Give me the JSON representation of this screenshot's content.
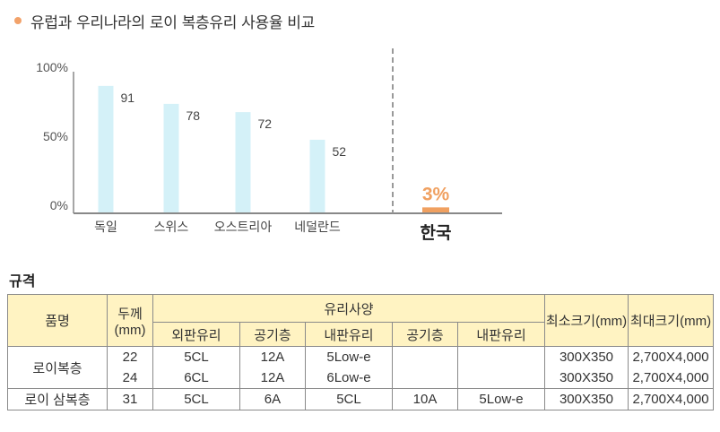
{
  "header": {
    "title": "유럽과 우리나라의 로이 복층유리 사용율 비교"
  },
  "chart_data": {
    "type": "bar",
    "categories": [
      "독일",
      "스위스",
      "오스트리아",
      "네덜란드"
    ],
    "values": [
      91,
      78,
      72,
      52
    ],
    "value_labels": [
      "91",
      "78",
      "72",
      "52"
    ],
    "highlight": {
      "category": "한국",
      "value": 3,
      "label": "3%"
    },
    "ylim": [
      0,
      100
    ],
    "yticks": [
      "100%",
      "50%",
      "0%"
    ],
    "colors": {
      "bars": "#d4f1f8",
      "highlight": "#f0a060",
      "axis": "#888888"
    }
  },
  "spec": {
    "title": "규격",
    "headers": {
      "product": "품명",
      "thickness": "두께(mm)",
      "glass_spec": "유리사양",
      "min_size": "최소크기(mm)",
      "max_size": "최대크기(mm)",
      "sub": [
        "외판유리",
        "공기층",
        "내판유리",
        "공기층",
        "내판유리"
      ]
    },
    "rows": [
      {
        "product": "로이복층",
        "thickness": [
          "22",
          "24"
        ],
        "outer": [
          "5CL",
          "6CL"
        ],
        "air1": [
          "12A",
          "12A"
        ],
        "inner1": [
          "5Low-e",
          "6Low-e"
        ],
        "air2": [
          "",
          ""
        ],
        "inner2": [
          "",
          ""
        ],
        "min": [
          "300X350",
          "300X350"
        ],
        "max": [
          "2,700X4,000",
          "2,700X4,000"
        ]
      },
      {
        "product": "로이 삼복층",
        "thickness": "31",
        "outer": "5CL",
        "air1": "6A",
        "inner1": "5CL",
        "air2": "10A",
        "inner2": "5Low-e",
        "min": "300X350",
        "max": "2,700X4,000"
      }
    ]
  }
}
